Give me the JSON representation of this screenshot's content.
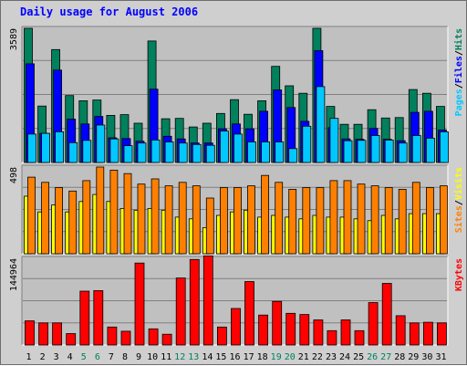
{
  "chart_data": {
    "title": "Daily usage for August 2006",
    "type": "bar",
    "days": [
      "1",
      "2",
      "3",
      "4",
      "5",
      "6",
      "7",
      "8",
      "9",
      "10",
      "11",
      "12",
      "13",
      "14",
      "15",
      "16",
      "17",
      "18",
      "19",
      "20",
      "21",
      "22",
      "23",
      "24",
      "25",
      "26",
      "27",
      "28",
      "29",
      "30",
      "31"
    ],
    "weekend_days": [
      "5",
      "6",
      "12",
      "13",
      "19",
      "20",
      "26",
      "27"
    ],
    "colors": {
      "hits": "#00805c",
      "files": "#0000ff",
      "pages": "#00c8ff",
      "visits": "#ffff00",
      "sites": "#ff8000",
      "kbytes": "#ff0000",
      "title": "#0000ff",
      "weekend_label": "#00805c",
      "weekday_label": "#000000"
    },
    "panels": [
      {
        "name": "hits-files-pages",
        "max_label": "3589",
        "ymax": 3589,
        "legend": [
          "Pages",
          "Files",
          "Hits"
        ],
        "series": [
          {
            "name": "Hits",
            "values": [
              3589,
              1510,
              3020,
              1790,
              1650,
              1670,
              1260,
              1280,
              1050,
              3250,
              1170,
              1180,
              950,
              1050,
              1310,
              1680,
              1290,
              1650,
              2570,
              2050,
              1850,
              3589,
              1500,
              1020,
              1020,
              1410,
              1190,
              1200,
              1950,
              1850,
              1500
            ]
          },
          {
            "name": "Files",
            "values": [
              2640,
              780,
              2470,
              1160,
              1030,
              1230,
              660,
              640,
              570,
              1960,
              700,
              630,
              520,
              520,
              900,
              1030,
              900,
              1370,
              1940,
              1470,
              1100,
              2990,
              930,
              630,
              620,
              910,
              620,
              580,
              1340,
              1370,
              870
            ]
          },
          {
            "name": "Pages",
            "values": [
              760,
              780,
              820,
              530,
              590,
              1000,
              630,
              450,
              520,
              600,
              550,
              520,
              480,
              460,
              840,
              760,
              550,
              550,
              550,
              370,
              970,
              2030,
              1180,
              580,
              590,
              720,
              600,
              520,
              720,
              650,
              820
            ]
          }
        ]
      },
      {
        "name": "visits-sites",
        "max_label": "498",
        "ymax": 498,
        "legend": [
          "Sites",
          "Visits"
        ],
        "series": [
          {
            "name": "Visits",
            "values": [
              330,
              240,
              280,
              240,
              300,
              340,
              300,
              260,
              250,
              260,
              250,
              210,
              200,
              150,
              220,
              240,
              250,
              210,
              220,
              210,
              200,
              220,
              210,
              210,
              200,
              190,
              220,
              200,
              230,
              230,
              230
            ]
          },
          {
            "name": "Sites",
            "values": [
              440,
              410,
              380,
              360,
              420,
              498,
              480,
              460,
              400,
              430,
              390,
              410,
              390,
              320,
              380,
              380,
              390,
              450,
              410,
              370,
              380,
              380,
              420,
              420,
              400,
              390,
              380,
              370,
              410,
              380,
              390
            ]
          }
        ]
      },
      {
        "name": "kbytes",
        "max_label": "144964",
        "ymax": 144964,
        "legend": [
          "KBytes"
        ],
        "series": [
          {
            "name": "KBytes",
            "values": [
              40500,
              37000,
              37000,
              19000,
              90000,
              91000,
              30000,
              23000,
              137000,
              27000,
              18000,
              112000,
              143000,
              149000,
              30000,
              61000,
              106000,
              50000,
              73000,
              53000,
              51000,
              42000,
              24000,
              42000,
              24000,
              71000,
              103000,
              49000,
              37000,
              38000,
              37000
            ]
          }
        ]
      }
    ]
  }
}
